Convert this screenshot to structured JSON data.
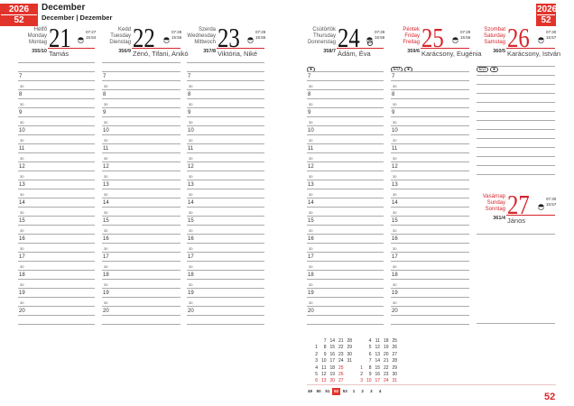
{
  "header": {
    "year": "2026",
    "week": "52",
    "month_title": "December",
    "month_subtitle": "December | Dezember"
  },
  "right_badge": {
    "year": "2026",
    "week": "52"
  },
  "accent_color": "#e2332b",
  "days": [
    {
      "names": [
        "Hétfő",
        "Monday",
        "Montag"
      ],
      "num": "21",
      "dayinfo": "355/10",
      "nameday": "Tamás",
      "sunrise": "07:27",
      "sunset": "15:54",
      "red": false,
      "moon": []
    },
    {
      "names": [
        "Kedd",
        "Tuesday",
        "Dienstag"
      ],
      "num": "22",
      "dayinfo": "356/9",
      "nameday": "Zénó, Tifani, Anikó",
      "sunrise": "07:28",
      "sunset": "15:55",
      "red": false,
      "moon": []
    },
    {
      "names": [
        "Szerda",
        "Wednesday",
        "Mittwoch"
      ],
      "num": "23",
      "dayinfo": "357/8",
      "nameday": "Viktória, Niké",
      "sunrise": "07:29",
      "sunset": "15:55",
      "red": false,
      "moon": []
    },
    {
      "names": [
        "Csütörtök",
        "Thursday",
        "Donnerstag"
      ],
      "num": "24",
      "dayinfo": "358/7",
      "nameday": "Ádám, Éva",
      "sunrise": "07:29",
      "sunset": "15:56",
      "red": false,
      "moon": [
        "●"
      ],
      "full_moon": true
    },
    {
      "names": [
        "Péntek",
        "Friday",
        "Freitag"
      ],
      "num": "25",
      "dayinfo": "359/6",
      "nameday": "Karácsony, Eugénia",
      "sunrise": "07:29",
      "sunset": "15:56",
      "red": true,
      "moon": [
        "EU",
        "●"
      ]
    },
    {
      "names": [
        "Szombat",
        "Saturday",
        "Samstag"
      ],
      "num": "26",
      "dayinfo": "360/5",
      "nameday": "Karácsony, István",
      "sunrise": "07:30",
      "sunset": "15:57",
      "red": true,
      "moon": [
        "EU",
        "●"
      ]
    },
    {
      "names": [
        "Vasárnap",
        "Sunday",
        "Sonntag"
      ],
      "num": "27",
      "dayinfo": "361/4",
      "nameday": "János",
      "sunrise": "07:30",
      "sunset": "15:57",
      "red": true,
      "moon": []
    }
  ],
  "hours": [
    "7",
    "8",
    "9",
    "10",
    "11",
    "12",
    "13",
    "14",
    "15",
    "16",
    "17",
    "18",
    "19",
    "20"
  ],
  "half_label": "30",
  "mini_calendars": [
    {
      "weeks": [
        [
          "",
          "1",
          "2",
          "3",
          "4",
          "5",
          "6"
        ],
        [
          "7",
          "8",
          "9",
          "10",
          "11",
          "12",
          "13"
        ],
        [
          "14",
          "15",
          "16",
          "17",
          "18",
          "19",
          "20"
        ],
        [
          "21",
          "22",
          "23",
          "24",
          "25",
          "26",
          "27"
        ],
        [
          "28",
          "29",
          "30",
          "31",
          "",
          "",
          ""
        ]
      ],
      "red": [
        "25",
        "26",
        "6",
        "13",
        "20",
        "27"
      ]
    },
    {
      "weeks": [
        [
          "",
          "",
          "",
          "",
          "1",
          "2",
          "3"
        ],
        [
          "4",
          "5",
          "6",
          "7",
          "8",
          "9",
          "10"
        ],
        [
          "11",
          "12",
          "13",
          "14",
          "15",
          "16",
          "17"
        ],
        [
          "18",
          "19",
          "20",
          "21",
          "22",
          "23",
          "24"
        ],
        [
          "25",
          "26",
          "27",
          "28",
          "29",
          "30",
          "31"
        ]
      ],
      "red": [
        "1",
        "3",
        "10",
        "17",
        "24",
        "31"
      ]
    }
  ],
  "week_numbers": [
    "49",
    "50",
    "51",
    "52",
    "53",
    "1",
    "2",
    "3",
    "4"
  ],
  "current_week": "52",
  "page_number": "52"
}
